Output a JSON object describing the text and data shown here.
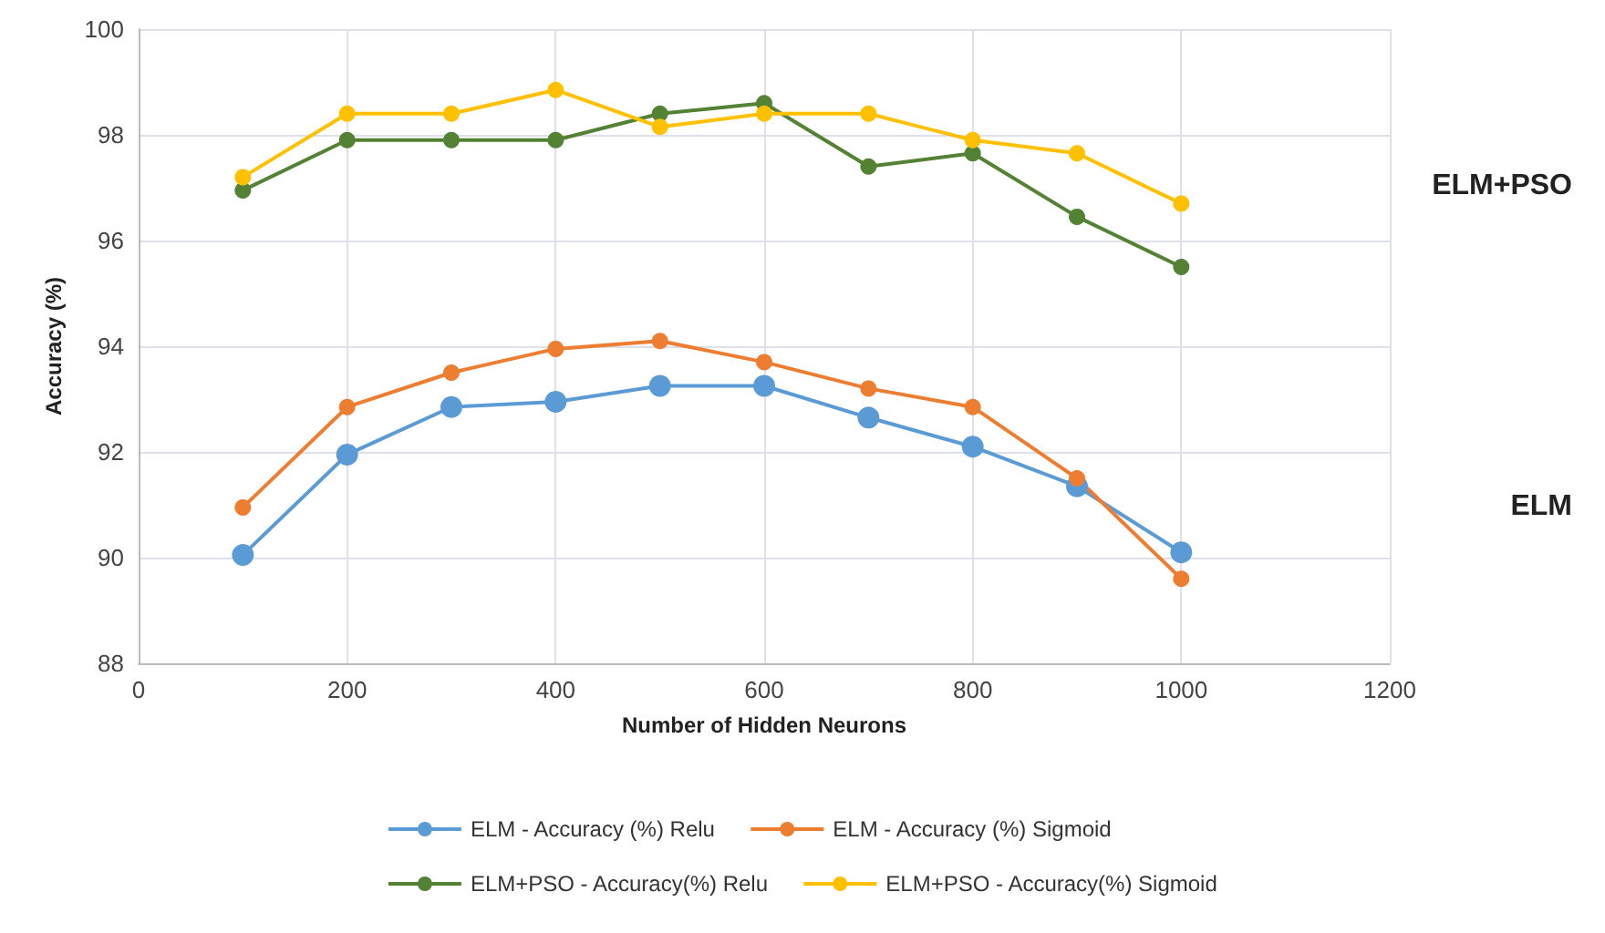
{
  "chart_data": {
    "type": "line",
    "xlabel": "Number of Hidden Neurons",
    "ylabel": "Accuracy (%)",
    "x": [
      100,
      200,
      300,
      400,
      500,
      600,
      700,
      800,
      900,
      1000
    ],
    "series": [
      {
        "name": "ELM - Accuracy (%) Relu",
        "color": "#5b9bd5",
        "values": [
          90.05,
          91.95,
          92.85,
          92.95,
          93.25,
          93.25,
          92.65,
          92.1,
          91.35,
          90.1
        ]
      },
      {
        "name": "ELM - Accuracy (%) Sigmoid",
        "color": "#ed7d31",
        "values": [
          90.95,
          92.85,
          93.5,
          93.95,
          94.1,
          93.7,
          93.2,
          92.85,
          91.5,
          89.6
        ]
      },
      {
        "name": "ELM+PSO - Accuracy(%) Relu",
        "color": "#548235",
        "values": [
          96.95,
          97.9,
          97.9,
          97.9,
          98.4,
          98.6,
          97.4,
          97.65,
          96.45,
          95.5
        ]
      },
      {
        "name": "ELM+PSO - Accuracy(%) Sigmoid",
        "color": "#ffc000",
        "values": [
          97.2,
          98.4,
          98.4,
          98.85,
          98.15,
          98.4,
          98.4,
          97.9,
          97.65,
          96.7
        ]
      }
    ],
    "annotations": [
      "ELM+PSO",
      "ELM"
    ],
    "xlim": [
      0,
      1200
    ],
    "xticks": [
      0,
      200,
      400,
      600,
      800,
      1000,
      1200
    ],
    "ylim": [
      88,
      100
    ],
    "yticks": [
      88,
      90,
      92,
      94,
      96,
      98,
      100
    ],
    "grid": true,
    "legend": "bottom",
    "marker": "circle",
    "line_style": "solid"
  }
}
